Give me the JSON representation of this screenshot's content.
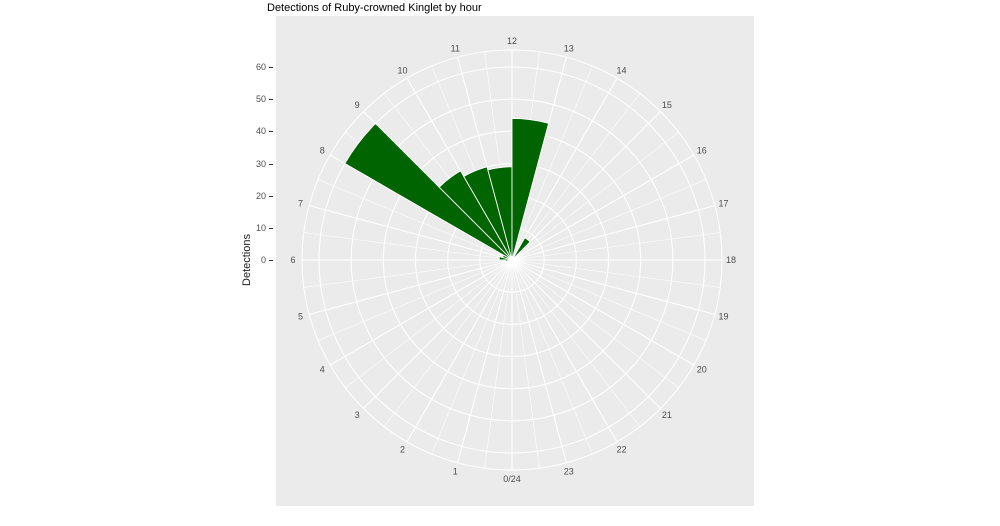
{
  "page": {
    "background": "#FFFFFF"
  },
  "chart_data": {
    "type": "bar",
    "coordinate": "polar",
    "title": "Detections of Ruby-crowned Kinglet by hour",
    "ylabel": "Detections",
    "categories": [
      0,
      1,
      2,
      3,
      4,
      5,
      6,
      7,
      8,
      9,
      10,
      11,
      12,
      13,
      14,
      15,
      16,
      17,
      18,
      19,
      20,
      21,
      22,
      23
    ],
    "values": [
      0,
      0,
      0,
      0,
      0,
      2,
      4,
      3,
      60,
      32,
      30,
      29,
      44,
      0,
      8,
      0,
      0,
      0,
      0,
      0,
      0,
      0,
      0,
      0
    ],
    "angle_tick_labels": [
      "0/24",
      "1",
      "2",
      "3",
      "4",
      "5",
      "6",
      "7",
      "8",
      "9",
      "10",
      "11",
      "12",
      "13",
      "14",
      "15",
      "16",
      "17",
      "18",
      "19",
      "20",
      "21",
      "22",
      "23"
    ],
    "r_ticks": [
      0,
      10,
      20,
      30,
      40,
      50,
      60
    ],
    "ylim": [
      0,
      60
    ],
    "start_top_hour": 12,
    "direction": "clockwise",
    "bin_width_hours": 1,
    "grid": "major circles every 10, spokes every half hour",
    "legend": "none",
    "colors": {
      "bar": "#006400",
      "panel": "#EBEBEB",
      "grid": "#FFFFFF",
      "axis_text": "#4D4D4D",
      "title_text": "#000000",
      "tick_mark": "#333333"
    }
  }
}
